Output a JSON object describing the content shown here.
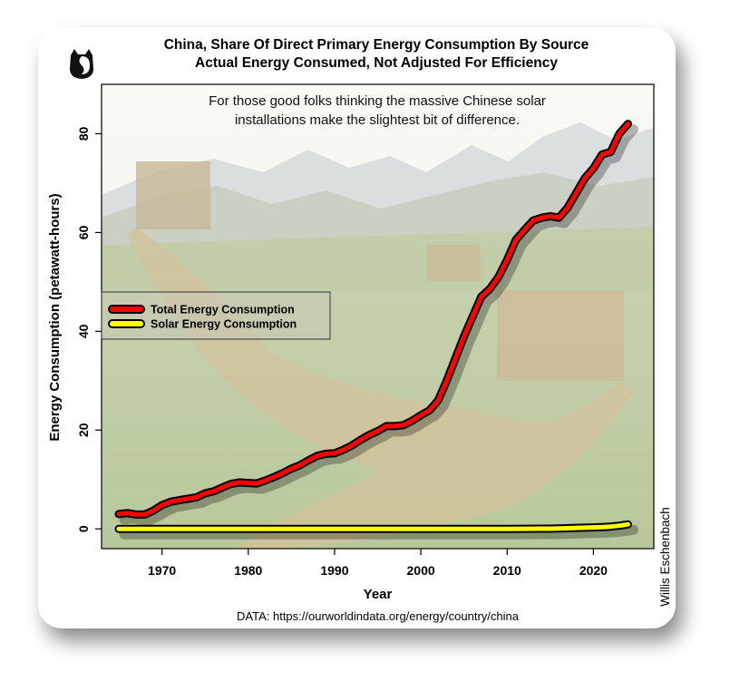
{
  "chart_data": {
    "type": "line",
    "title": "China, Share Of Direct Primary Energy Consumption By Source",
    "subtitle": "Actual Energy Consumed, Not Adjusted For Efficiency",
    "xlabel": "Year",
    "ylabel": "Energy Consumption (petawatt-hours)",
    "xlim": [
      1963,
      2027
    ],
    "ylim": [
      -4,
      90
    ],
    "x_ticks": [
      1970,
      1980,
      1990,
      2000,
      2010,
      2020
    ],
    "y_ticks": [
      0,
      20,
      40,
      60,
      80
    ],
    "annotation": [
      "For those good folks thinking the massive Chinese solar",
      "installations make the slightest bit of difference."
    ],
    "legend_position": "center-left",
    "source": "DATA: https://ourworldindata.org/energy/country/china",
    "signature": "Willis Eschenbach",
    "series": [
      {
        "name": "Total Energy Consumption",
        "color": "#ff0000",
        "x": [
          1965,
          1966,
          1967,
          1968,
          1969,
          1970,
          1971,
          1972,
          1973,
          1974,
          1975,
          1976,
          1977,
          1978,
          1979,
          1980,
          1981,
          1982,
          1983,
          1984,
          1985,
          1986,
          1987,
          1988,
          1989,
          1990,
          1991,
          1992,
          1993,
          1994,
          1995,
          1996,
          1997,
          1998,
          1999,
          2000,
          2001,
          2002,
          2003,
          2004,
          2005,
          2006,
          2007,
          2008,
          2009,
          2010,
          2011,
          2012,
          2013,
          2014,
          2015,
          2016,
          2017,
          2018,
          2019,
          2020,
          2021,
          2022,
          2023,
          2024
        ],
        "values": [
          3.0,
          3.2,
          2.9,
          2.9,
          3.7,
          4.8,
          5.5,
          5.8,
          6.1,
          6.4,
          7.2,
          7.6,
          8.4,
          9.1,
          9.4,
          9.3,
          9.2,
          9.8,
          10.5,
          11.3,
          12.2,
          12.9,
          13.9,
          14.8,
          15.2,
          15.3,
          16.0,
          16.9,
          18.0,
          19.0,
          19.8,
          20.8,
          20.8,
          21.0,
          21.9,
          23.0,
          24.0,
          26.0,
          30.0,
          34.5,
          39.0,
          43.0,
          47.0,
          48.6,
          51.0,
          54.5,
          58.5,
          60.5,
          62.4,
          63.0,
          63.3,
          63.0,
          65.0,
          68.0,
          71.0,
          73.0,
          75.8,
          76.3,
          80.0,
          82.0
        ]
      },
      {
        "name": "Solar Energy Consumption",
        "color": "#ffff00",
        "x": [
          1965,
          1970,
          1980,
          1990,
          2000,
          2010,
          2012,
          2014,
          2015,
          2016,
          2017,
          2018,
          2019,
          2020,
          2021,
          2022,
          2023,
          2024
        ],
        "values": [
          0,
          0,
          0,
          0,
          0,
          0.01,
          0.02,
          0.03,
          0.04,
          0.08,
          0.14,
          0.2,
          0.25,
          0.3,
          0.36,
          0.47,
          0.65,
          0.9
        ]
      }
    ]
  }
}
